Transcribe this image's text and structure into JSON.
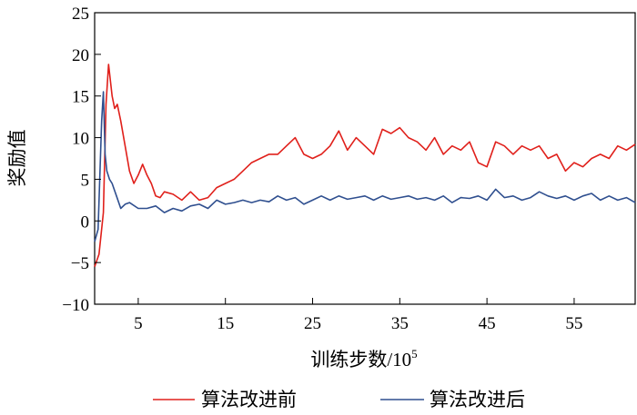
{
  "chart_data": {
    "type": "line",
    "xlabel": "训练步数/10",
    "xlabel_sup": "5",
    "ylabel": "奖励值",
    "xlim": [
      0,
      62
    ],
    "ylim": [
      -10,
      25
    ],
    "x_ticks": [
      5,
      15,
      25,
      35,
      45,
      55
    ],
    "y_ticks": [
      -10,
      -5,
      0,
      5,
      10,
      15,
      20,
      25
    ],
    "y_tick_labels": [
      "−10",
      "−5",
      "0",
      "5",
      "10",
      "15",
      "20",
      "25"
    ],
    "grid": false,
    "legend_position": "bottom",
    "series": [
      {
        "name": "算法改进前",
        "color": "#e0201b",
        "x": [
          0,
          0.5,
          1,
          1.3,
          1.6,
          2,
          2.3,
          2.6,
          3,
          3.5,
          4,
          4.5,
          5,
          5.5,
          6,
          6.5,
          7,
          7.5,
          8,
          9,
          10,
          11,
          12,
          13,
          14,
          15,
          16,
          17,
          18,
          19,
          20,
          21,
          22,
          23,
          24,
          25,
          26,
          27,
          28,
          29,
          30,
          31,
          32,
          33,
          34,
          35,
          36,
          37,
          38,
          39,
          40,
          41,
          42,
          43,
          44,
          45,
          46,
          47,
          48,
          49,
          50,
          51,
          52,
          53,
          54,
          55,
          56,
          57,
          58,
          59,
          60,
          61,
          62
        ],
        "values": [
          -5.5,
          -4,
          1,
          14,
          18.8,
          15,
          13.5,
          14,
          12,
          9,
          6,
          4.5,
          5.5,
          6.8,
          5.5,
          4.5,
          3,
          2.8,
          3.5,
          3.2,
          2.5,
          3.5,
          2.5,
          2.8,
          4,
          4.5,
          5,
          6,
          7,
          7.5,
          8,
          8,
          9,
          10,
          8,
          7.5,
          8,
          9,
          10.8,
          8.5,
          10,
          9,
          8,
          11,
          10.5,
          11.2,
          10,
          9.5,
          8.5,
          10,
          8,
          9,
          8.5,
          9.5,
          7,
          6.5,
          9.5,
          9,
          8,
          9,
          8.5,
          9,
          7.5,
          8,
          6,
          7,
          6.5,
          7.5,
          8,
          7.5,
          9,
          8.5,
          9.2
        ]
      },
      {
        "name": "算法改进后",
        "color": "#2f4f8f",
        "x": [
          0,
          0.4,
          0.8,
          1,
          1.2,
          1.4,
          1.7,
          2,
          2.5,
          3,
          3.5,
          4,
          5,
          6,
          7,
          8,
          9,
          10,
          11,
          12,
          13,
          14,
          15,
          16,
          17,
          18,
          19,
          20,
          21,
          22,
          23,
          24,
          25,
          26,
          27,
          28,
          29,
          30,
          31,
          32,
          33,
          34,
          35,
          36,
          37,
          38,
          39,
          40,
          41,
          42,
          43,
          44,
          45,
          46,
          47,
          48,
          49,
          50,
          51,
          52,
          53,
          54,
          55,
          56,
          57,
          58,
          59,
          60,
          61,
          62
        ],
        "values": [
          -2.5,
          -1,
          12,
          15.5,
          8,
          6,
          5,
          4.5,
          3,
          1.5,
          2,
          2.2,
          1.5,
          1.5,
          1.8,
          1,
          1.5,
          1.2,
          1.8,
          2,
          1.5,
          2.5,
          2,
          2.2,
          2.5,
          2.2,
          2.5,
          2.3,
          3,
          2.5,
          2.8,
          2,
          2.5,
          3,
          2.5,
          3,
          2.6,
          2.8,
          3,
          2.5,
          3,
          2.6,
          2.8,
          3,
          2.6,
          2.8,
          2.5,
          3,
          2.2,
          2.8,
          2.7,
          3,
          2.5,
          3.8,
          2.8,
          3,
          2.5,
          2.8,
          3.5,
          3,
          2.7,
          3,
          2.5,
          3,
          3.3,
          2.5,
          3,
          2.5,
          2.8,
          2.2
        ]
      }
    ]
  }
}
